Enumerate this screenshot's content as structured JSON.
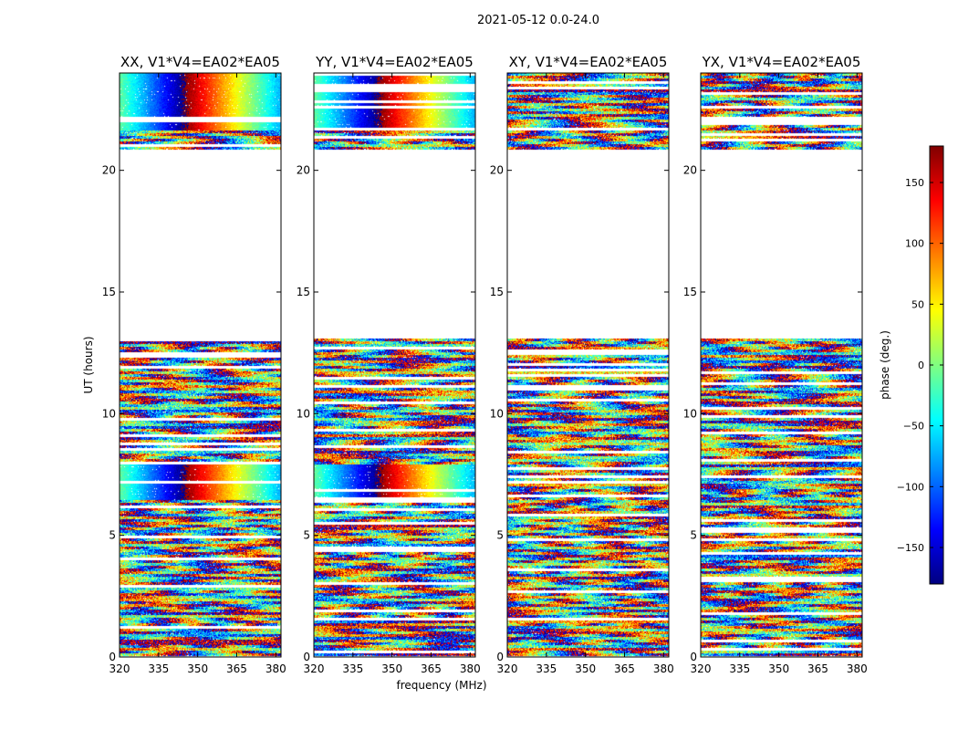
{
  "chart_data": {
    "type": "heatmap",
    "suptitle": "2021-05-12 0.0-24.0",
    "xlabel": "frequency (MHz)",
    "ylabel": "UT (hours)",
    "xlim": [
      320,
      382
    ],
    "ylim": [
      0,
      24
    ],
    "xticks": [
      320,
      335,
      350,
      365,
      380
    ],
    "yticks": [
      0,
      5,
      10,
      15,
      20
    ],
    "colorbar": {
      "label": "phase (deg.)",
      "colormap": "jet",
      "range": [
        -180,
        180
      ],
      "ticks": [
        150,
        100,
        50,
        0,
        -50,
        -100,
        -150
      ],
      "tick_labels": [
        "150",
        "100",
        "50",
        "0",
        "−50",
        "−100",
        "−150"
      ]
    },
    "data_ut_ranges_hours": [
      [
        0,
        13.1
      ],
      [
        20.9,
        24
      ]
    ],
    "gap_ut_ranges_hours": [
      [
        13.1,
        20.9
      ]
    ],
    "panels": [
      {
        "title": "XX, V1*V4=EA02*EA05",
        "polarization": "XX",
        "baseline": "EA02*EA05"
      },
      {
        "title": "YY, V1*V4=EA02*EA05",
        "polarization": "YY",
        "baseline": "EA02*EA05"
      },
      {
        "title": "XY, V1*V4=EA02*EA05",
        "polarization": "XY",
        "baseline": "EA02*EA05"
      },
      {
        "title": "YX, V1*V4=EA02*EA05",
        "polarization": "YX",
        "baseline": "EA02*EA05"
      }
    ]
  }
}
